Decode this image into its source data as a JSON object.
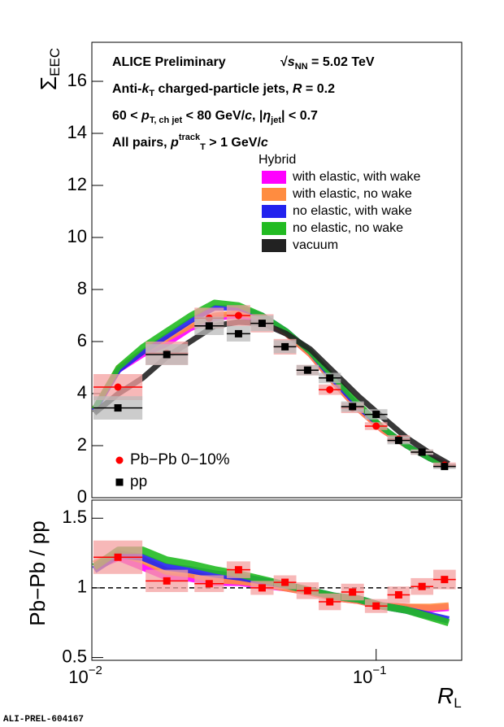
{
  "chart_data": [
    {
      "type": "line",
      "log_x": true,
      "xlim": [
        0.01,
        0.2
      ],
      "ylim": [
        0,
        17.5
      ],
      "yticks": [
        0,
        2,
        4,
        6,
        8,
        10,
        12,
        14,
        16
      ],
      "y_label": "Σ",
      "y_label_sub": "EEC",
      "annotations": [
        [
          {
            "t": "ALICE Preliminary"
          }
        ],
        [
          {
            "t": "√"
          },
          {
            "t": "s",
            "s": "i"
          },
          {
            "t": "NN",
            "s": "sub"
          },
          {
            "t": " = 5.02 TeV"
          }
        ],
        [
          {
            "t": "Anti-"
          },
          {
            "t": "k",
            "s": "i"
          },
          {
            "t": "T",
            "s": "sub"
          },
          {
            "t": " charged-particle jets, "
          },
          {
            "t": "R",
            "s": "i"
          },
          {
            "t": " = 0.2"
          }
        ],
        [
          {
            "t": "60 <  "
          },
          {
            "t": "p",
            "s": "i"
          },
          {
            "t": "T, ch jet",
            "s": "sub"
          },
          {
            "t": " < 80 GeV/"
          },
          {
            "t": "c",
            "s": "i"
          },
          {
            "t": ", |"
          },
          {
            "t": "η",
            "s": "i"
          },
          {
            "t": "jet",
            "s": "sub"
          },
          {
            "t": "| < 0.7"
          }
        ],
        [
          {
            "t": "All pairs,  "
          },
          {
            "t": "p",
            "s": "i"
          },
          {
            "t": "track",
            "s": "sup"
          },
          {
            "t": "T",
            "s": "sub"
          },
          {
            "t": " > 1 GeV/"
          },
          {
            "t": "c",
            "s": "i"
          }
        ]
      ],
      "legend_title": "Hybrid",
      "curve_x": [
        0.0102,
        0.0124,
        0.0151,
        0.0183,
        0.0222,
        0.027,
        0.0328,
        0.0398,
        0.0483,
        0.0587,
        0.0713,
        0.0866,
        0.105,
        0.128,
        0.155,
        0.18
      ],
      "series": [
        {
          "name": "with elastic, with wake",
          "style": "band",
          "color": "#ff00ff",
          "values": [
            3.35,
            4.9,
            5.5,
            5.9,
            6.5,
            6.9,
            7.0,
            6.8,
            6.3,
            5.5,
            4.4,
            3.4,
            2.6,
            2.0,
            1.55,
            1.25
          ]
        },
        {
          "name": "with elastic, no wake",
          "style": "band",
          "color": "#ff8c40",
          "values": [
            3.4,
            5.0,
            5.6,
            6.1,
            6.6,
            7.0,
            7.1,
            6.9,
            6.3,
            5.5,
            4.4,
            3.4,
            2.6,
            2.0,
            1.5,
            1.25
          ]
        },
        {
          "name": "no elastic, with wake",
          "style": "band",
          "color": "#2222ee",
          "values": [
            3.35,
            4.9,
            5.6,
            6.2,
            6.8,
            7.3,
            7.3,
            7.0,
            6.4,
            5.6,
            4.5,
            3.5,
            2.7,
            2.0,
            1.5,
            1.2
          ]
        },
        {
          "name": "no elastic, no wake",
          "style": "band",
          "color": "#22bb22",
          "values": [
            3.4,
            5.0,
            5.8,
            6.4,
            7.0,
            7.5,
            7.4,
            7.0,
            6.4,
            5.6,
            4.6,
            3.6,
            2.7,
            2.0,
            1.5,
            1.2
          ]
        },
        {
          "name": "vacuum",
          "style": "band",
          "color": "#222222",
          "values": [
            3.25,
            4.0,
            4.6,
            5.4,
            6.0,
            6.6,
            6.75,
            6.7,
            6.3,
            5.7,
            4.8,
            3.9,
            3.1,
            2.3,
            1.7,
            1.3
          ]
        },
        {
          "name": "Pb−Pb 0−10%",
          "style": "points",
          "marker": "circle",
          "color": "#ff0000",
          "box_color": "#f4a0a0",
          "x": [
            0.01235,
            0.01835,
            0.02586,
            0.0328,
            0.0397,
            0.0478,
            0.0574,
            0.0687,
            0.0826,
            0.1,
            0.12,
            0.145,
            0.174
          ],
          "values": [
            4.25,
            5.55,
            6.9,
            7.0,
            6.7,
            5.8,
            4.9,
            4.15,
            3.45,
            2.75,
            2.25,
            1.75,
            1.25
          ],
          "errors": [
            0.5,
            0.45,
            0.4,
            0.4,
            0.35,
            0.3,
            0.2,
            0.2,
            0.2,
            0.15,
            0.15,
            0.1,
            0.1
          ]
        },
        {
          "name": "pp",
          "style": "points",
          "marker": "square",
          "color": "#000000",
          "box_color": "#bbbbbb",
          "x": [
            0.01235,
            0.01835,
            0.02586,
            0.0328,
            0.0397,
            0.0478,
            0.0574,
            0.0687,
            0.0826,
            0.1,
            0.12,
            0.145,
            0.174
          ],
          "values": [
            3.45,
            5.5,
            6.6,
            6.3,
            6.7,
            5.8,
            4.9,
            4.6,
            3.5,
            3.2,
            2.2,
            1.75,
            1.2
          ],
          "errors": [
            0.45,
            0.4,
            0.35,
            0.3,
            0.3,
            0.25,
            0.2,
            0.2,
            0.2,
            0.2,
            0.15,
            0.1,
            0.1
          ]
        }
      ]
    },
    {
      "type": "line",
      "log_x": true,
      "xlim": [
        0.01,
        0.2
      ],
      "ylim": [
        0.48,
        1.63
      ],
      "yticks": [
        0.5,
        1,
        1.5
      ],
      "xticks": [
        {
          "value": 0.01,
          "label": "10",
          "exponent": "−2"
        },
        {
          "value": 0.1,
          "label": "10",
          "exponent": "−1"
        }
      ],
      "y_label": "Pb−Pb / pp",
      "x_label": "R",
      "x_label_sub": "L",
      "reference_line": 1,
      "curve_x": [
        0.0102,
        0.0124,
        0.0151,
        0.0183,
        0.0222,
        0.027,
        0.0328,
        0.0398,
        0.0483,
        0.0587,
        0.0713,
        0.0866,
        0.105,
        0.128,
        0.155,
        0.18
      ],
      "series": [
        {
          "style": "band",
          "color": "#ff00ff",
          "values": [
            1.15,
            1.22,
            1.15,
            1.08,
            1.07,
            1.04,
            1.04,
            1.02,
            1.0,
            0.97,
            0.93,
            0.91,
            0.87,
            0.86,
            0.85,
            0.86
          ]
        },
        {
          "style": "band",
          "color": "#ff8c40",
          "values": [
            1.17,
            1.25,
            1.2,
            1.12,
            1.1,
            1.06,
            1.05,
            1.03,
            1.0,
            0.97,
            0.93,
            0.91,
            0.87,
            0.86,
            0.86,
            0.87
          ]
        },
        {
          "style": "band",
          "color": "#2222ee",
          "values": [
            1.13,
            1.24,
            1.22,
            1.15,
            1.13,
            1.1,
            1.08,
            1.05,
            1.02,
            0.98,
            0.94,
            0.92,
            0.87,
            0.84,
            0.8,
            0.77
          ]
        },
        {
          "style": "band",
          "color": "#22bb22",
          "values": [
            1.15,
            1.27,
            1.27,
            1.2,
            1.17,
            1.13,
            1.1,
            1.06,
            1.02,
            0.98,
            0.94,
            0.92,
            0.87,
            0.84,
            0.79,
            0.75
          ]
        },
        {
          "style": "points",
          "marker": "square",
          "color": "#ff0000",
          "box_color": "#f4a0a0",
          "x": [
            0.01235,
            0.01835,
            0.02586,
            0.0328,
            0.0397,
            0.0478,
            0.0574,
            0.0687,
            0.0826,
            0.1,
            0.12,
            0.145,
            0.174
          ],
          "values": [
            1.22,
            1.05,
            1.03,
            1.13,
            1.0,
            1.04,
            0.98,
            0.9,
            0.97,
            0.87,
            0.95,
            1.01,
            1.06
          ],
          "errors": [
            0.12,
            0.08,
            0.06,
            0.06,
            0.05,
            0.05,
            0.06,
            0.06,
            0.06,
            0.05,
            0.06,
            0.06,
            0.07
          ]
        }
      ]
    }
  ],
  "footer": "ALI-PREL-604167"
}
